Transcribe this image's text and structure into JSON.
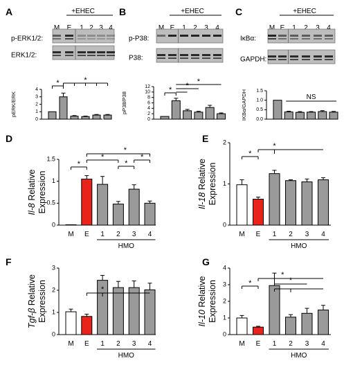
{
  "common": {
    "ehec_label": "+EHEC",
    "lanes": [
      "M",
      "E",
      "1",
      "2",
      "3",
      "4"
    ],
    "hmo_label": "HMO",
    "sig_mark": "*",
    "ns_mark": "NS"
  },
  "colors": {
    "bar_gray": "#9a9a9a",
    "bar_red": "#e8231c",
    "bar_white": "#ffffff",
    "axis": "#000000",
    "blot_bg": "#bdbdbd",
    "band": "#1a1a1a"
  },
  "blots": [
    {
      "panel": "A",
      "rows": [
        "p-ERK1/2:",
        "ERK1/2:"
      ]
    },
    {
      "panel": "B",
      "rows": [
        "p-P38:",
        "P38:"
      ]
    },
    {
      "panel": "C",
      "rows": [
        "IκBα:",
        "GAPDH:"
      ]
    }
  ],
  "chart_data": [
    {
      "panel": "A",
      "type": "bar",
      "categories": [
        "M",
        "E",
        "1",
        "2",
        "3",
        "4"
      ],
      "values": [
        1.0,
        3.0,
        0.4,
        0.35,
        0.55,
        0.55
      ],
      "errors": [
        0.0,
        0.5,
        0.08,
        0.06,
        0.08,
        0.08
      ],
      "ylabel": "pERK/ERK",
      "ylim": [
        0,
        4
      ],
      "yticks": [
        0,
        1,
        2,
        3,
        4
      ],
      "show_xticks": false
    },
    {
      "panel": "B",
      "type": "bar",
      "categories": [
        "M",
        "E",
        "1",
        "2",
        "3",
        "4"
      ],
      "values": [
        1.0,
        6.8,
        3.1,
        2.6,
        4.3,
        2.0
      ],
      "errors": [
        0.0,
        0.9,
        0.5,
        0.3,
        0.8,
        0.3
      ],
      "ylabel": "pP38/P38",
      "ylim": [
        0,
        12
      ],
      "yticks": [
        0,
        2,
        4,
        6,
        8,
        10,
        12
      ],
      "show_xticks": false
    },
    {
      "panel": "C",
      "type": "bar",
      "categories": [
        "M",
        "E",
        "1",
        "2",
        "3",
        "4"
      ],
      "values": [
        1.0,
        0.38,
        0.36,
        0.37,
        0.4,
        0.37
      ],
      "errors": [
        0.0,
        0.04,
        0.04,
        0.03,
        0.05,
        0.04
      ],
      "ylabel": "IKBα/GAPDH",
      "ylim": [
        0,
        1.5
      ],
      "yticks": [
        0,
        0.5,
        1.0,
        1.5
      ],
      "ytick_labels": [
        "0.0",
        "0.5",
        "1.0",
        "1.5"
      ],
      "show_xticks": false
    },
    {
      "panel": "D",
      "type": "bar",
      "categories": [
        "M",
        "E",
        "1",
        "2",
        "3",
        "4"
      ],
      "values": [
        0.0,
        1.05,
        0.93,
        0.48,
        0.82,
        0.5
      ],
      "errors": [
        0.0,
        0.08,
        0.18,
        0.06,
        0.1,
        0.05
      ],
      "gene": "Il-8",
      "ylabel_rest": "Relative Expression",
      "ylim": [
        0,
        1.5
      ],
      "yticks": [
        0,
        0.5,
        1.0,
        1.5
      ],
      "ytick_labels": [
        "0",
        "0.5",
        "1",
        "1.5"
      ],
      "show_xticks": true,
      "hmo": true
    },
    {
      "panel": "E",
      "type": "bar",
      "categories": [
        "M",
        "E",
        "1",
        "2",
        "3",
        "4"
      ],
      "values": [
        0.98,
        0.63,
        1.25,
        1.08,
        1.05,
        1.1
      ],
      "errors": [
        0.12,
        0.05,
        0.08,
        0.02,
        0.07,
        0.05
      ],
      "gene": "Il-18",
      "ylabel_rest": "Relative Expression",
      "ylim": [
        0,
        2
      ],
      "yticks": [
        0,
        1,
        2
      ],
      "ytick_labels": [
        "0",
        "1",
        "2"
      ],
      "show_xticks": true,
      "hmo": true
    },
    {
      "panel": "F",
      "type": "bar",
      "categories": [
        "M",
        "E",
        "1",
        "2",
        "3",
        "4"
      ],
      "values": [
        1.03,
        0.82,
        2.45,
        2.12,
        2.12,
        2.02
      ],
      "errors": [
        0.12,
        0.1,
        0.22,
        0.28,
        0.3,
        0.3
      ],
      "gene": "Tgf-β",
      "ylabel_rest": "Relative Expression",
      "ylim": [
        0,
        3
      ],
      "yticks": [
        0,
        1,
        2,
        3
      ],
      "ytick_labels": [
        "0",
        "1",
        "2",
        "3"
      ],
      "show_xticks": true,
      "hmo": true
    },
    {
      "panel": "G",
      "type": "bar",
      "categories": [
        "M",
        "E",
        "1",
        "2",
        "3",
        "4"
      ],
      "values": [
        1.0,
        0.45,
        2.95,
        1.05,
        1.28,
        1.48
      ],
      "errors": [
        0.15,
        0.05,
        0.75,
        0.15,
        0.3,
        0.28
      ],
      "gene": "Il-10",
      "ylabel_rest": "Relative Expression",
      "ylim": [
        0,
        4
      ],
      "yticks": [
        0,
        1,
        2,
        3,
        4
      ],
      "ytick_labels": [
        "0",
        "1",
        "2",
        "3",
        "4"
      ],
      "show_xticks": true,
      "hmo": true
    }
  ]
}
